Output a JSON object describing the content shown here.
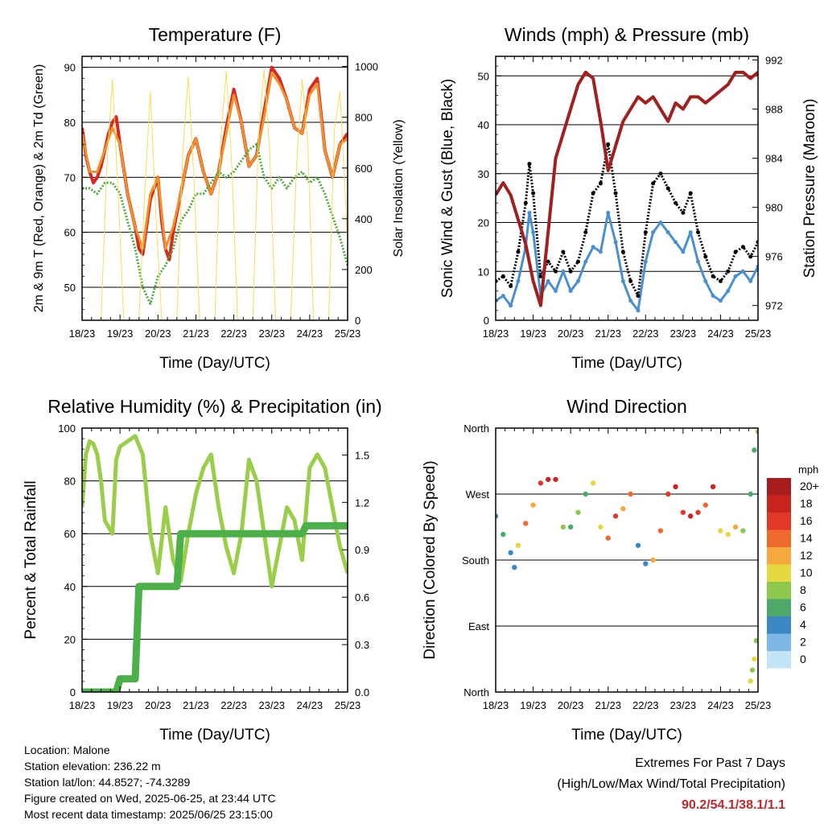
{
  "chart_data": [
    {
      "type": "line",
      "title": "Temperature (F)",
      "xlabel": "Time (Day/UTC)",
      "ylabel": "2m & 9m T (Red, Orange) & 2m Td (Green)",
      "ylabel_right": "Solar Insolation (Yellow)",
      "x_ticks": [
        "18/23",
        "19/23",
        "20/23",
        "21/23",
        "22/23",
        "23/23",
        "24/23",
        "25/23"
      ],
      "y_ticks": [
        50,
        60,
        70,
        80,
        90
      ],
      "y_right_ticks": [
        0,
        200,
        400,
        600,
        800,
        1000
      ],
      "ylim": [
        44,
        92
      ],
      "ylim_right": [
        0,
        1040
      ],
      "series": [
        {
          "name": "2m T",
          "color": "#d62a20",
          "x": [
            0,
            0.1,
            0.2,
            0.3,
            0.4,
            0.5,
            0.6,
            0.7,
            0.8,
            0.9,
            1,
            1.2,
            1.4,
            1.5,
            1.6,
            1.8,
            2,
            2.1,
            2.2,
            2.3,
            2.4,
            2.6,
            2.8,
            3,
            3.2,
            3.4,
            3.6,
            3.8,
            4,
            4.2,
            4.4,
            4.6,
            4.8,
            5,
            5.2,
            5.4,
            5.6,
            5.8,
            6,
            6.2,
            6.4,
            6.6,
            6.8,
            7
          ],
          "values": [
            79,
            74,
            71,
            69,
            70,
            72,
            75,
            78,
            80,
            81,
            76,
            67,
            61,
            57,
            56,
            66,
            70,
            62,
            57,
            55,
            60,
            67,
            74,
            77,
            71,
            67,
            71,
            79,
            86,
            80,
            72,
            74,
            82,
            90,
            88,
            84,
            79,
            78,
            86,
            88,
            75,
            70,
            76,
            78
          ]
        },
        {
          "name": "9m T",
          "color": "#f0902a",
          "x": [
            0,
            0.2,
            0.4,
            0.6,
            0.8,
            1,
            1.2,
            1.4,
            1.6,
            1.8,
            2,
            2.2,
            2.4,
            2.6,
            2.8,
            3,
            3.2,
            3.4,
            3.6,
            3.8,
            4,
            4.2,
            4.4,
            4.6,
            4.8,
            5,
            5.2,
            5.4,
            5.6,
            5.8,
            6,
            6.2,
            6.4,
            6.6,
            6.8,
            7
          ],
          "values": [
            78,
            71,
            71,
            75,
            79,
            76,
            67,
            61,
            57,
            67,
            70,
            57,
            61,
            67,
            74,
            77,
            71,
            67,
            71,
            78,
            85,
            80,
            72,
            74,
            81,
            89,
            87,
            84,
            79,
            78,
            85,
            87,
            75,
            70,
            76,
            77
          ]
        },
        {
          "name": "2m Td",
          "color": "#4caa3e",
          "x": [
            0,
            0.2,
            0.4,
            0.6,
            0.8,
            1,
            1.2,
            1.4,
            1.6,
            1.8,
            2,
            2.2,
            2.4,
            2.6,
            2.8,
            3,
            3.2,
            3.4,
            3.6,
            3.8,
            4,
            4.2,
            4.4,
            4.6,
            4.8,
            5,
            5.2,
            5.4,
            5.6,
            5.8,
            6,
            6.2,
            6.4,
            6.6,
            6.8,
            7
          ],
          "values": [
            68,
            68,
            67,
            69,
            69,
            67,
            62,
            57,
            50,
            47,
            52,
            54,
            57,
            62,
            64,
            67,
            67,
            69,
            71,
            70,
            71,
            73,
            75,
            76,
            70,
            68,
            70,
            68,
            70,
            71,
            69,
            70,
            67,
            63,
            59,
            54
          ]
        },
        {
          "name": "Solar Insolation",
          "color": "#f7dc5a",
          "axis": "right",
          "x": [
            0,
            0.3,
            0.5,
            0.65,
            0.8,
            0.95,
            1.1,
            1.3,
            1.5,
            1.65,
            1.8,
            1.95,
            2.1,
            2.3,
            2.5,
            2.65,
            2.8,
            2.95,
            3.1,
            3.3,
            3.5,
            3.65,
            3.8,
            3.95,
            4.1,
            4.3,
            4.5,
            4.65,
            4.8,
            4.95,
            5.1,
            5.3,
            5.5,
            5.65,
            5.8,
            5.95,
            6.1,
            6.3,
            6.5,
            6.65,
            6.8,
            6.95,
            7
          ],
          "values": [
            0,
            0,
            0,
            600,
            950,
            500,
            0,
            0,
            0,
            500,
            900,
            400,
            0,
            0,
            0,
            650,
            960,
            550,
            0,
            0,
            0,
            700,
            980,
            600,
            0,
            0,
            0,
            720,
            990,
            650,
            0,
            0,
            0,
            600,
            950,
            700,
            0,
            0,
            0,
            750,
            900,
            450,
            300
          ]
        }
      ]
    },
    {
      "type": "scatter",
      "title": "Winds (mph) & Pressure (mb)",
      "xlabel": "Time (Day/UTC)",
      "ylabel": "Sonic Wind & Gust (Blue, Black)",
      "ylabel_right": "Station Pressure (Maroon)",
      "x_ticks": [
        "18/23",
        "19/23",
        "20/23",
        "21/23",
        "22/23",
        "23/23",
        "24/23",
        "25/23"
      ],
      "y_ticks": [
        0,
        10,
        20,
        30,
        40,
        50
      ],
      "y_right_ticks": [
        972,
        976,
        980,
        984,
        988,
        992
      ],
      "ylim": [
        0,
        54
      ],
      "ylim_right": [
        970,
        992
      ],
      "series": [
        {
          "name": "Sonic Wind",
          "color": "#4a90d0",
          "x": [
            0,
            0.2,
            0.4,
            0.6,
            0.8,
            0.9,
            1,
            1.2,
            1.4,
            1.6,
            1.8,
            2,
            2.2,
            2.4,
            2.6,
            2.8,
            3,
            3.2,
            3.4,
            3.6,
            3.8,
            4,
            4.2,
            4.4,
            4.6,
            4.8,
            5,
            5.2,
            5.4,
            5.6,
            5.8,
            6,
            6.2,
            6.4,
            6.6,
            6.8,
            7
          ],
          "values": [
            4,
            5,
            3,
            8,
            15,
            22,
            18,
            5,
            8,
            6,
            10,
            6,
            8,
            12,
            15,
            14,
            22,
            16,
            8,
            4,
            2,
            12,
            18,
            20,
            18,
            16,
            14,
            18,
            12,
            8,
            5,
            4,
            6,
            9,
            10,
            8,
            11
          ]
        },
        {
          "name": "Gust",
          "color": "#000000",
          "x": [
            0,
            0.2,
            0.4,
            0.6,
            0.8,
            0.9,
            1,
            1.2,
            1.4,
            1.6,
            1.8,
            2,
            2.2,
            2.4,
            2.6,
            2.8,
            3,
            3.2,
            3.4,
            3.6,
            3.8,
            4,
            4.2,
            4.4,
            4.6,
            4.8,
            5,
            5.2,
            5.4,
            5.6,
            5.8,
            6,
            6.2,
            6.4,
            6.6,
            6.8,
            7
          ],
          "values": [
            8,
            9,
            7,
            14,
            24,
            32,
            26,
            9,
            12,
            10,
            14,
            10,
            12,
            18,
            26,
            28,
            36,
            26,
            14,
            8,
            5,
            18,
            28,
            30,
            27,
            24,
            22,
            26,
            18,
            13,
            9,
            8,
            10,
            14,
            15,
            13,
            16
          ]
        },
        {
          "name": "Station Pressure",
          "color": "#a02020",
          "axis": "right",
          "x": [
            0,
            0.2,
            0.4,
            0.6,
            0.8,
            1,
            1.2,
            1.4,
            1.6,
            1.8,
            2,
            2.2,
            2.4,
            2.6,
            2.8,
            3,
            3.2,
            3.4,
            3.6,
            3.8,
            4,
            4.2,
            4.4,
            4.6,
            4.8,
            5,
            5.2,
            5.4,
            5.6,
            5.8,
            6,
            6.2,
            6.4,
            6.6,
            6.8,
            7
          ],
          "values": [
            981,
            982,
            981,
            979,
            977,
            974,
            972,
            978,
            984,
            986,
            988,
            990,
            991,
            990.5,
            987,
            983,
            985,
            987,
            988,
            989,
            988.5,
            989,
            988,
            987,
            988.5,
            988,
            989,
            989,
            988.5,
            989,
            989.5,
            990,
            991,
            991,
            990.5,
            991
          ]
        }
      ]
    },
    {
      "type": "line",
      "title": "Relative Humidity (%) & Precipitation (in)",
      "xlabel": "Time (Day/UTC)",
      "ylabel": "Percent & Total Rainfall",
      "x_ticks": [
        "18/23",
        "19/23",
        "20/23",
        "21/23",
        "22/23",
        "23/23",
        "24/23",
        "25/23"
      ],
      "y_ticks": [
        0,
        20,
        40,
        60,
        80,
        100
      ],
      "y_right_ticks": [
        "0.0",
        "0.3",
        "0.6",
        "0.9",
        "1.2",
        "1.5"
      ],
      "ylim": [
        0,
        100
      ],
      "ylim_right": [
        0,
        1.67
      ],
      "series": [
        {
          "name": "Relative Humidity",
          "color": "#9acd4a",
          "x": [
            0,
            0.1,
            0.2,
            0.3,
            0.4,
            0.5,
            0.6,
            0.8,
            0.9,
            1,
            1.2,
            1.4,
            1.6,
            1.8,
            2,
            2.2,
            2.4,
            2.6,
            2.8,
            3,
            3.2,
            3.4,
            3.6,
            3.8,
            4,
            4.2,
            4.4,
            4.6,
            4.8,
            5,
            5.2,
            5.4,
            5.6,
            5.8,
            6,
            6.2,
            6.4,
            6.6,
            6.8,
            7
          ],
          "values": [
            70,
            90,
            95,
            94,
            90,
            80,
            65,
            60,
            88,
            93,
            95,
            97,
            90,
            60,
            45,
            70,
            50,
            42,
            60,
            75,
            85,
            90,
            70,
            55,
            45,
            60,
            88,
            80,
            60,
            40,
            55,
            70,
            65,
            50,
            85,
            90,
            85,
            70,
            55,
            45
          ]
        },
        {
          "name": "Total Precipitation",
          "color": "#4cb048",
          "x": [
            0,
            0.9,
            1,
            1.4,
            1.5,
            2.5,
            2.6,
            5.8,
            5.9,
            7
          ],
          "values": [
            0,
            0,
            5,
            5,
            40,
            40,
            60,
            60,
            63,
            63
          ]
        }
      ]
    },
    {
      "type": "scatter",
      "title": "Wind Direction",
      "xlabel": "Time (Day/UTC)",
      "ylabel": "Direction (Colored By Speed)",
      "x_ticks": [
        "18/23",
        "19/23",
        "20/23",
        "21/23",
        "22/23",
        "23/23",
        "24/23",
        "25/23"
      ],
      "y_ticks": [
        "North",
        "East",
        "South",
        "West",
        "North"
      ],
      "ylim": [
        0,
        360
      ],
      "legend_title": "mph",
      "legend_labels": [
        "20+",
        "18",
        "16",
        "14",
        "12",
        "10",
        "8",
        "6",
        "4",
        "2",
        "0"
      ],
      "legend_colors": [
        "#a51d1d",
        "#c9241f",
        "#e0392a",
        "#ef6a2e",
        "#f7a83c",
        "#e6d840",
        "#8cc84c",
        "#4ea86a",
        "#3c86c4",
        "#7db8e4",
        "#c2e4f6"
      ],
      "series": [
        {
          "name": "direction",
          "x": [
            0,
            0.2,
            0.4,
            0.5,
            0.6,
            0.8,
            1,
            1.2,
            1.4,
            1.6,
            1.8,
            2,
            2.2,
            2.4,
            2.6,
            2.8,
            3,
            3.2,
            3.4,
            3.6,
            3.8,
            4,
            4.2,
            4.4,
            4.6,
            4.8,
            5,
            5.2,
            5.4,
            5.6,
            5.8,
            6,
            6.2,
            6.4,
            6.6,
            6.8,
            6.9,
            7
          ],
          "values": [
            240,
            215,
            190,
            170,
            200,
            230,
            255,
            285,
            290,
            290,
            225,
            225,
            245,
            270,
            285,
            225,
            210,
            240,
            250,
            270,
            200,
            175,
            180,
            220,
            270,
            280,
            245,
            240,
            245,
            255,
            280,
            220,
            215,
            225,
            220,
            270,
            330,
            355
          ],
          "speeds": [
            4,
            6,
            4,
            3,
            10,
            14,
            12,
            16,
            18,
            18,
            7,
            6,
            8,
            5,
            10,
            9,
            14,
            16,
            12,
            13,
            4,
            4,
            12,
            14,
            16,
            18,
            15,
            17,
            16,
            14,
            18,
            10,
            9,
            12,
            8,
            5,
            6,
            7
          ]
        },
        {
          "name": "direction-north",
          "x": [
            6.8,
            6.85,
            6.9,
            6.95
          ],
          "values": [
            15,
            30,
            45,
            70
          ],
          "speeds": [
            9,
            8,
            10,
            7
          ]
        }
      ]
    }
  ],
  "info": {
    "location": "Location: Malone",
    "elevation": "Station elevation: 236.22 m",
    "latlon": "Station lat/lon: 44.8527; -74.3289",
    "created": "Figure created on Wed, 2025-06-25, at 23:44 UTC",
    "recent": "Most recent data timestamp: 2025/06/25 23:15:00"
  },
  "extremes": {
    "title": "Extremes For Past 7 Days",
    "subtitle": "(High/Low/Max Wind/Total Precipitation)",
    "values": "90.2/54.1/38.1/1.1"
  }
}
